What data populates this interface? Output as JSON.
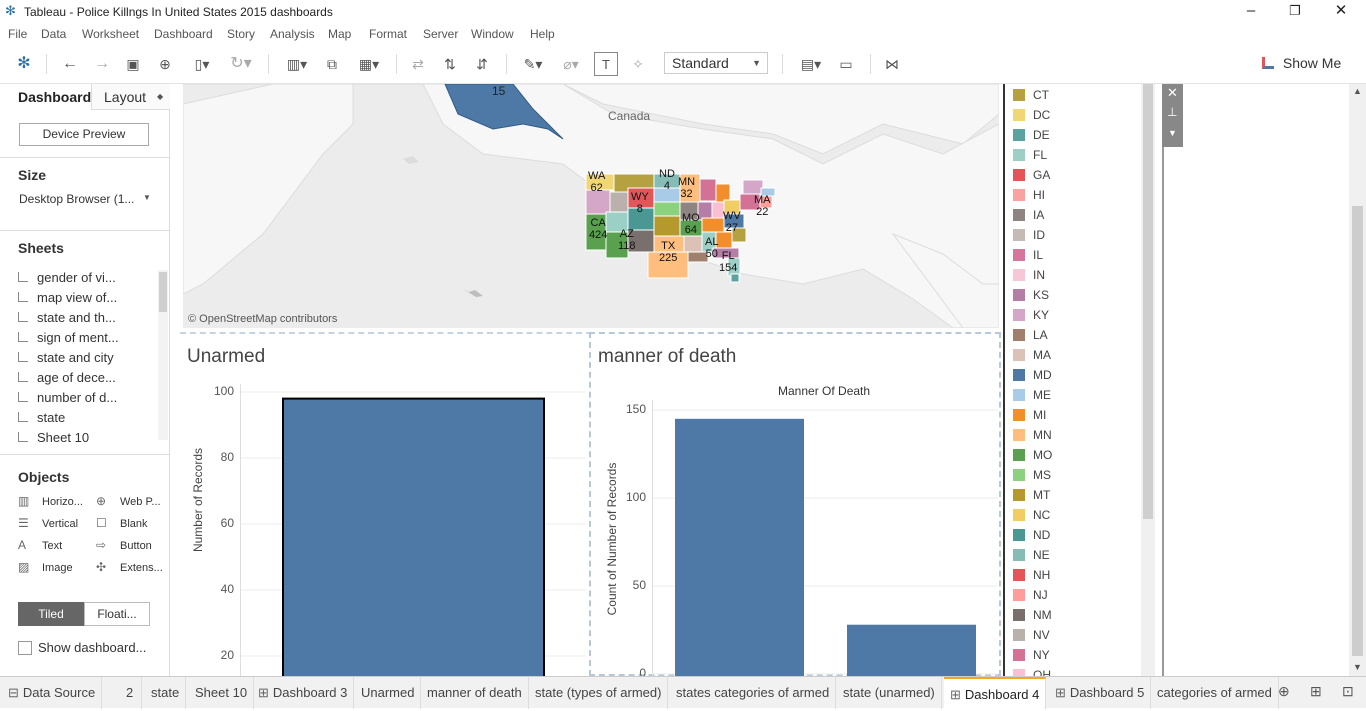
{
  "window": {
    "title": "Tableau - Police Killngs In United States 2015 dashboards"
  },
  "menu": [
    "File",
    "Data",
    "Worksheet",
    "Dashboard",
    "Story",
    "Analysis",
    "Map",
    "Format",
    "Server",
    "Window",
    "Help"
  ],
  "toolbar": {
    "fit_value": "Standard",
    "show_me": "Show Me"
  },
  "left_pane": {
    "tabs": {
      "dashboard": "Dashboard",
      "layout": "Layout"
    },
    "device_preview": "Device Preview",
    "size_title": "Size",
    "size_value": "Desktop Browser (1...",
    "sheets_title": "Sheets",
    "sheets": [
      "gender of vi...",
      "map view of...",
      "state and th...",
      "sign of ment...",
      "state and city",
      "age of dece...",
      "number of d...",
      "state",
      "Sheet 10"
    ],
    "objects_title": "Objects",
    "objects": {
      "horizontal": "Horizo...",
      "web_page": "Web P...",
      "vertical": "Vertical",
      "blank": "Blank",
      "text": "Text",
      "button": "Button",
      "image": "Image",
      "extension": "Extens..."
    },
    "tiled": "Tiled",
    "floating": "Floati...",
    "show_dashboard_title": "Show dashboard..."
  },
  "map": {
    "country_label": "Canada",
    "attribution": "© OpenStreetMap contributors",
    "state_labels": [
      {
        "abbr": "WA",
        "count": "62"
      },
      {
        "abbr": "ND",
        "count": "4"
      },
      {
        "abbr": "MN",
        "count": "32"
      },
      {
        "abbr": "WY",
        "count": "8"
      },
      {
        "abbr": "MA",
        "count": "22"
      },
      {
        "abbr": "CA",
        "count": "424"
      },
      {
        "abbr": "MO",
        "count": "64"
      },
      {
        "abbr": "WV",
        "count": "27"
      },
      {
        "abbr": "AZ",
        "count": "118"
      },
      {
        "abbr": "TX",
        "count": "225"
      },
      {
        "abbr": "AL",
        "count": "50"
      },
      {
        "abbr": "FL",
        "count": "154"
      },
      {
        "abbr": "",
        "count": "15"
      }
    ]
  },
  "legend": {
    "items": [
      {
        "label": "CT",
        "color": "#b5a13f"
      },
      {
        "label": "DC",
        "color": "#f0d675"
      },
      {
        "label": "DE",
        "color": "#5ba3a0"
      },
      {
        "label": "FL",
        "color": "#9cd0c6"
      },
      {
        "label": "GA",
        "color": "#e15759"
      },
      {
        "label": "HI",
        "color": "#f8a3a1"
      },
      {
        "label": "IA",
        "color": "#8e8481"
      },
      {
        "label": "ID",
        "color": "#c6bab6"
      },
      {
        "label": "IL",
        "color": "#d6759d"
      },
      {
        "label": "IN",
        "color": "#f7c7d8"
      },
      {
        "label": "KS",
        "color": "#b47ea6"
      },
      {
        "label": "KY",
        "color": "#d4a6c8"
      },
      {
        "label": "LA",
        "color": "#a0806c"
      },
      {
        "label": "MA",
        "color": "#dcc1b6"
      },
      {
        "label": "MD",
        "color": "#4e79a7"
      },
      {
        "label": "ME",
        "color": "#a8cce8"
      },
      {
        "label": "MI",
        "color": "#f28e2b"
      },
      {
        "label": "MN",
        "color": "#ffbe7d"
      },
      {
        "label": "MO",
        "color": "#59a14f"
      },
      {
        "label": "MS",
        "color": "#8cd17d"
      },
      {
        "label": "MT",
        "color": "#b6992d"
      },
      {
        "label": "NC",
        "color": "#f1ce63"
      },
      {
        "label": "ND",
        "color": "#499894"
      },
      {
        "label": "NE",
        "color": "#86bcb6"
      },
      {
        "label": "NH",
        "color": "#e15759"
      },
      {
        "label": "NJ",
        "color": "#ff9d9a"
      },
      {
        "label": "NM",
        "color": "#79706e"
      },
      {
        "label": "NV",
        "color": "#bab0ac"
      },
      {
        "label": "NY",
        "color": "#d37295"
      },
      {
        "label": "OH",
        "color": "#fabfd2"
      }
    ]
  },
  "unarmed": {
    "title": "Unarmed",
    "ylabel": "Number of Records"
  },
  "manner": {
    "title": "manner of death",
    "chart_title": "Manner Of Death",
    "ylabel": "Count of Number of Records"
  },
  "chart_data": [
    {
      "type": "bar",
      "title": "Unarmed",
      "ylabel": "Number of Records",
      "yticks": [
        "100",
        "80",
        "60",
        "40",
        "20"
      ],
      "ylim": [
        0,
        100
      ],
      "values": [
        98
      ]
    },
    {
      "type": "bar",
      "title": "Manner Of Death",
      "ylabel": "Count of Number of Records",
      "yticks": [
        "150",
        "100",
        "50",
        "0"
      ],
      "ylim": [
        0,
        150
      ],
      "values": [
        145,
        28
      ]
    }
  ],
  "tabs": [
    "Data Source",
    "2",
    "state",
    "Sheet 10",
    "Dashboard 3",
    "Unarmed",
    "manner of death",
    "state (types of armed)",
    "states categories of armed",
    "state (unarmed)",
    "Dashboard 4",
    "Dashboard 5",
    "categories of armed"
  ],
  "active_tab": "Dashboard 4",
  "colors": {
    "bar": "#4e79a7",
    "accent": "#f5a623"
  }
}
